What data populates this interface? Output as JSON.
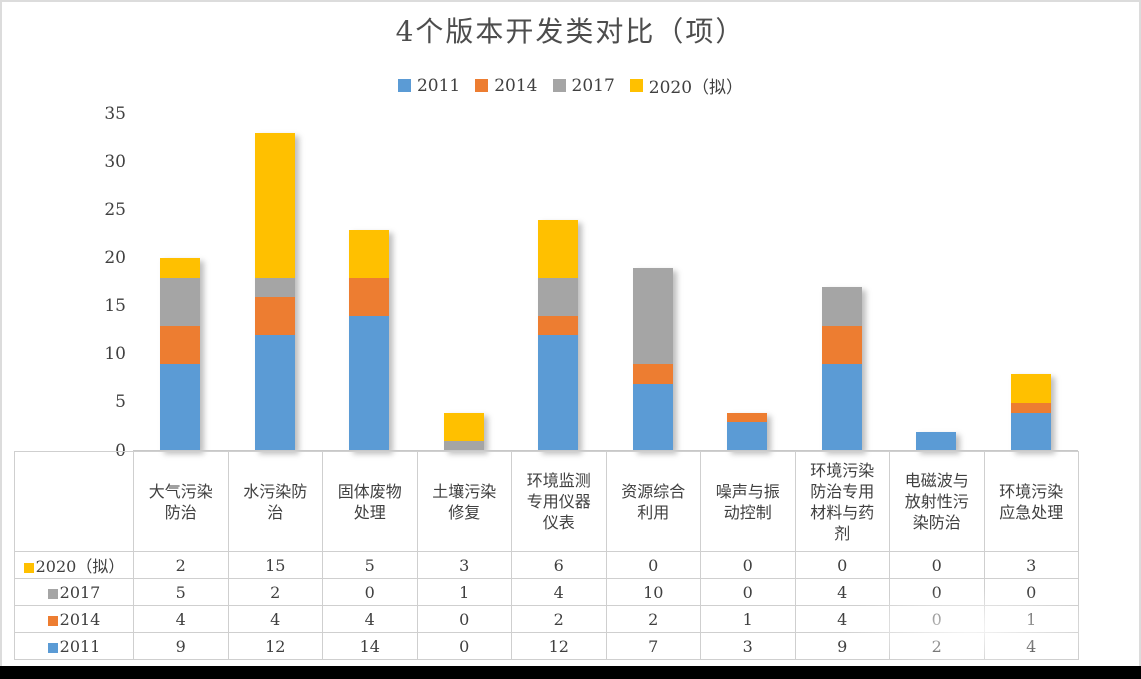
{
  "title": "4个版本开发类对比（项）",
  "colors": {
    "s2011": "#5B9BD5",
    "s2014": "#ED7D31",
    "s2017": "#A5A5A5",
    "s2020": "#FFC000",
    "text": "#404040",
    "title_text": "#4d4d4d",
    "table_border": "#cfcfcf",
    "frame_border": "#dcdcdc",
    "bottom_bar": "#000000"
  },
  "chart_data": {
    "type": "bar",
    "stacked": true,
    "title": "4个版本开发类对比（项）",
    "xlabel": "",
    "ylabel": "",
    "ylim": [
      0,
      35
    ],
    "yticks": [
      0,
      5,
      10,
      15,
      20,
      25,
      30,
      35
    ],
    "grid": false,
    "legend_position": "top",
    "categories": [
      "大气污染防治",
      "水污染防治",
      "固体废物处理",
      "土壤污染修复",
      "环境监测专用仪器仪表",
      "资源综合利用",
      "噪声与振动控制",
      "环境污染防治专用材料与药剂",
      "电磁波与放射性污染防治",
      "环境污染应急处理"
    ],
    "series": [
      {
        "name": "2011",
        "color": "#5B9BD5",
        "values": [
          9,
          12,
          14,
          0,
          12,
          7,
          3,
          9,
          2,
          4
        ]
      },
      {
        "name": "2014",
        "color": "#ED7D31",
        "values": [
          4,
          4,
          4,
          0,
          2,
          2,
          1,
          4,
          0,
          1
        ]
      },
      {
        "name": "2017",
        "color": "#A5A5A5",
        "values": [
          5,
          2,
          0,
          1,
          4,
          10,
          0,
          4,
          0,
          0
        ]
      },
      {
        "name": "2020（拟）",
        "color": "#FFC000",
        "values": [
          2,
          15,
          5,
          3,
          6,
          0,
          0,
          0,
          0,
          3
        ]
      }
    ]
  },
  "legend": [
    {
      "label": "2011",
      "color": "#5B9BD5"
    },
    {
      "label": "2014",
      "color": "#ED7D31"
    },
    {
      "label": "2017",
      "color": "#A5A5A5"
    },
    {
      "label": "2020（拟）",
      "color": "#FFC000"
    }
  ],
  "data_table": {
    "category_headers_display": [
      "大气污染\n防治",
      "水污染防\n治",
      "固体废物\n处理",
      "土壤污染\n修复",
      "环境监测\n专用仪器\n仪表",
      "资源综合\n利用",
      "噪声与振\n动控制",
      "环境污染\n防治专用\n材料与药\n剂",
      "电磁波与\n放射性污\n染防治",
      "环境污染\n应急处理"
    ],
    "rows": [
      {
        "label": "2020（拟）",
        "color": "#FFC000",
        "values": [
          2,
          15,
          5,
          3,
          6,
          0,
          0,
          0,
          0,
          3
        ]
      },
      {
        "label": "2017",
        "color": "#A5A5A5",
        "values": [
          5,
          2,
          0,
          1,
          4,
          10,
          0,
          4,
          0,
          0
        ]
      },
      {
        "label": "2014",
        "color": "#ED7D31",
        "values": [
          4,
          4,
          4,
          0,
          2,
          2,
          1,
          4,
          0,
          1
        ]
      },
      {
        "label": "2011",
        "color": "#5B9BD5",
        "values": [
          9,
          12,
          14,
          0,
          12,
          7,
          3,
          9,
          2,
          4
        ]
      }
    ]
  }
}
